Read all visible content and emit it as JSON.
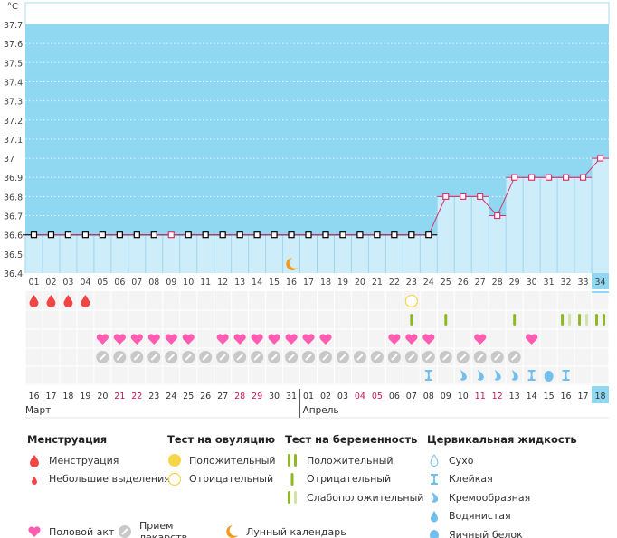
{
  "chart_data": {
    "type": "line",
    "unit_label": "°C",
    "ylim": [
      36.4,
      37.7
    ],
    "yticks": [
      "37.7",
      "37.6",
      "37.5",
      "37.4",
      "37.3",
      "37.2",
      "37.1",
      "37",
      "36.9",
      "36.8",
      "36.7",
      "36.6",
      "36.5",
      "36.4"
    ],
    "cycle_days": [
      "01",
      "02",
      "03",
      "04",
      "05",
      "06",
      "07",
      "08",
      "09",
      "10",
      "11",
      "12",
      "13",
      "14",
      "15",
      "16",
      "17",
      "18",
      "19",
      "20",
      "21",
      "22",
      "23",
      "24",
      "25",
      "26",
      "27",
      "28",
      "29",
      "30",
      "31",
      "32",
      "33",
      "34"
    ],
    "temperatures": [
      36.6,
      36.6,
      36.6,
      36.6,
      36.6,
      36.6,
      36.6,
      36.6,
      36.6,
      36.6,
      36.6,
      36.6,
      36.6,
      36.6,
      36.6,
      36.6,
      36.6,
      36.6,
      36.6,
      36.6,
      36.6,
      36.6,
      36.6,
      36.6,
      36.8,
      36.8,
      36.8,
      36.7,
      36.9,
      36.9,
      36.9,
      36.9,
      36.9,
      37.0
    ],
    "highlight_points": [
      9
    ],
    "coverline_until_day": 24,
    "current_day": 34,
    "moon_day": 16,
    "dates": [
      "16",
      "17",
      "18",
      "19",
      "20",
      "21",
      "22",
      "23",
      "24",
      "25",
      "26",
      "27",
      "28",
      "29",
      "30",
      "31",
      "01",
      "02",
      "03",
      "04",
      "05",
      "06",
      "07",
      "08",
      "09",
      "10",
      "11",
      "12",
      "13",
      "14",
      "15",
      "16",
      "17",
      "18"
    ],
    "weekend_days": [
      6,
      7,
      13,
      14,
      20,
      21,
      27,
      28
    ],
    "months": [
      {
        "label": "Март",
        "start_day": 1
      },
      {
        "label": "Апрель",
        "start_day": 17
      }
    ],
    "menstruation_days": [
      1,
      2,
      3,
      4
    ],
    "ovulation_negative_days": [
      23
    ],
    "pregnancy_tests": {
      "negative": [
        23,
        25,
        29
      ],
      "weak": [
        32,
        33
      ],
      "positive": [
        34
      ]
    },
    "intercourse_days": [
      5,
      6,
      7,
      8,
      9,
      10,
      12,
      13,
      14,
      15,
      16,
      17,
      18,
      22,
      23,
      24,
      27,
      30
    ],
    "medication_days": [
      5,
      6,
      7,
      8,
      9,
      10,
      11,
      12,
      13,
      14,
      15,
      16,
      17,
      18,
      19,
      20,
      21,
      22,
      23,
      24,
      25,
      26,
      27,
      28,
      29
    ],
    "cervical": {
      "sticky": [
        24,
        30,
        32
      ],
      "creamy": [
        26,
        27,
        28,
        29
      ],
      "eggwhite": [
        31
      ]
    }
  },
  "colors": {
    "bg_dark": "#90d8f2",
    "bg_light": "#cdedfb",
    "line": "#d6336c",
    "blood": "#f04646",
    "heart": "#ff5cb2",
    "pill": "#c8c8c8",
    "green": "#8fb824",
    "green_light": "#d3e2a8",
    "fluid": "#72bfee",
    "moon": "#f29a1c",
    "ovulation": "#f7d54a"
  },
  "legend": {
    "menstruation": {
      "title": "Менструация",
      "items": [
        "Менструация",
        "Небольшие выделения"
      ]
    },
    "ovulation": {
      "title": "Тест на овуляцию",
      "items": [
        "Положительный",
        "Отрицательный"
      ]
    },
    "pregnancy": {
      "title": "Тест на беременность",
      "items": [
        "Положительный",
        "Отрицательный",
        "Слабоположительный"
      ]
    },
    "cervical": {
      "title": "Цервикальная жидкость",
      "items": [
        "Сухо",
        "Клейкая",
        "Кремообразная",
        "Водянистая",
        "Яичный белок"
      ]
    },
    "other": [
      "Половой акт",
      "Прием лекарств",
      "Лунный календарь"
    ]
  }
}
